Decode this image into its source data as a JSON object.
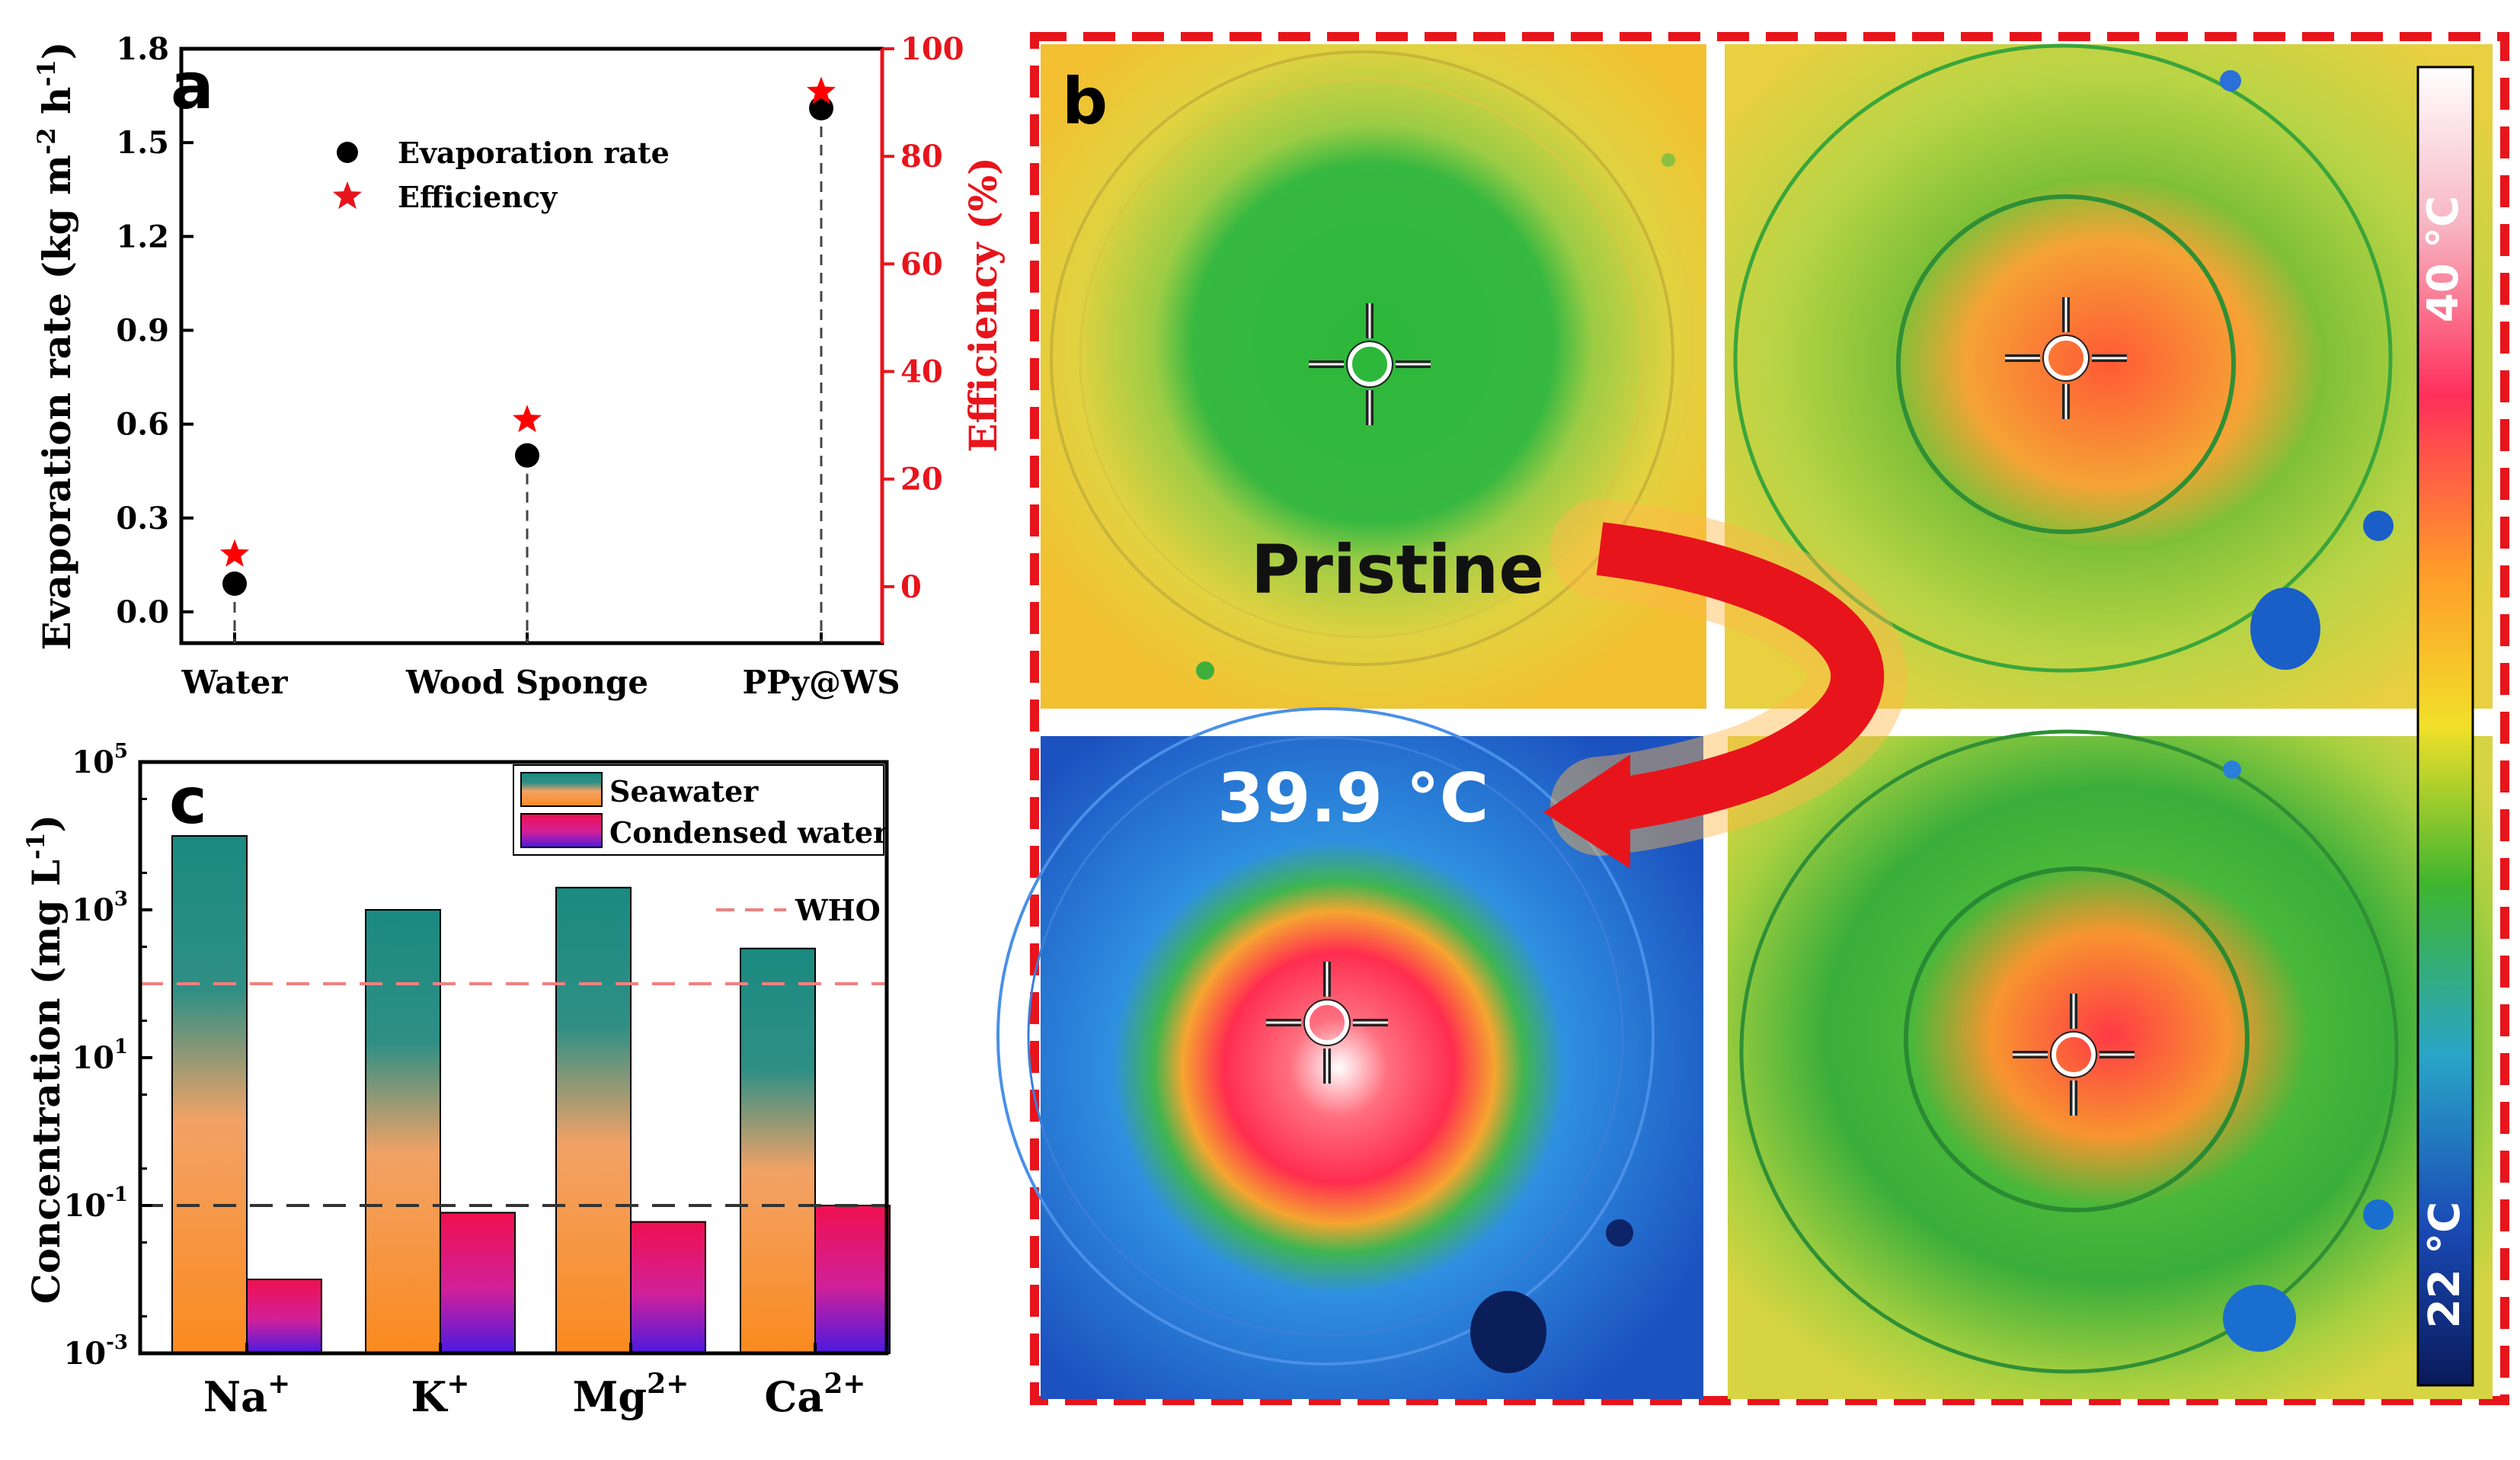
{
  "chart_data": [
    {
      "panel": "a",
      "type": "scatter",
      "categories": [
        "Water",
        "Wood Sponge",
        "PPy@WS"
      ],
      "series": [
        {
          "name": "Evaporation rate",
          "axis": "left",
          "marker": "circle",
          "color": "#000000",
          "values": [
            0.09,
            0.5,
            1.61
          ]
        },
        {
          "name": "Efficiency",
          "axis": "right",
          "marker": "star",
          "color": "#ff0000",
          "values": [
            6,
            31,
            92
          ]
        }
      ],
      "ylabel": "Evaporation rate (kg m",
      "ylabel_sup1": "-2",
      "ylabel_mid": " h",
      "ylabel_sup2": "-1",
      "ylabel_end": ")",
      "ylim": [
        -0.1,
        1.8
      ],
      "yticks": [
        "0.0",
        "0.3",
        "0.6",
        "0.9",
        "1.2",
        "1.5",
        "1.8"
      ],
      "ytick_values": [
        0,
        0.3,
        0.6,
        0.9,
        1.2,
        1.5,
        1.8
      ],
      "y2label": "Efficiency (%)",
      "y2lim": [
        -10.5,
        100
      ],
      "y2ticks": [
        "0",
        "20",
        "40",
        "60",
        "80",
        "100"
      ],
      "y2tick_values": [
        0,
        20,
        40,
        60,
        80,
        100
      ]
    },
    {
      "panel": "c",
      "type": "bar",
      "yscale": "log",
      "categories": [
        "Na",
        "K",
        "Mg",
        "Ca"
      ],
      "category_sups": [
        "+",
        "+",
        "2+",
        "2+"
      ],
      "series": [
        {
          "name": "Seawater",
          "values": [
            10000,
            1000,
            2000,
            300
          ]
        },
        {
          "name": "Condensed water",
          "values": [
            0.01,
            0.08,
            0.06,
            0.1
          ]
        }
      ],
      "reference_lines": [
        {
          "name": "WHO",
          "value": 100,
          "style": "dashed",
          "color": "#f08080"
        },
        {
          "name": "",
          "value": 0.1,
          "style": "dashed",
          "color": "#333333"
        }
      ],
      "ylabel": "Concentration (mg L",
      "ylabel_sup": "-1",
      "ylabel_end": ")",
      "ylim_exp": [
        -3,
        5
      ],
      "yticks_exp": [
        "-3",
        "-1",
        "1",
        "3",
        "5"
      ]
    }
  ],
  "panel_labels": {
    "a": "a",
    "b": "b",
    "c": "c"
  },
  "legend_c": {
    "seawater": "Seawater",
    "condensed": "Condensed water",
    "who": "WHO"
  },
  "thermal": {
    "pristine_label": "Pristine",
    "temp_label": "39.9 °C",
    "scale_high": "40 °C",
    "scale_low": "22 °C",
    "colors": {
      "frame": "#e8141b",
      "arrow": "#e8141b",
      "hot": "#ff3a4a",
      "warm": "#f5c52a",
      "cool": "#2a8ae8",
      "cold": "#1a3a9c"
    }
  }
}
